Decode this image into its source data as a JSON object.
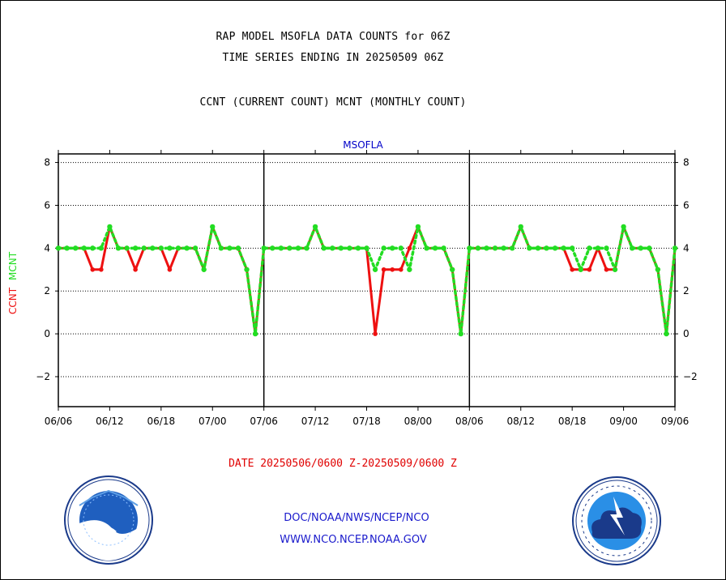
{
  "header": {
    "title_line1": "RAP MODEL MSOFLA DATA COUNTS for 06Z",
    "title_line2": "TIME SERIES ENDING IN 20250509 06Z",
    "subtitle": "CCNT (CURRENT COUNT) MCNT (MONTHLY COUNT)"
  },
  "footer": {
    "date_range": "DATE 20250506/0600 Z-20250509/0600 Z",
    "org": "DOC/NOAA/NWS/NCEP/NCO",
    "url": "WWW.NCO.NCEP.NOAA.GOV"
  },
  "logos": {
    "left": "noaa-logo",
    "right": "nws-logo"
  },
  "colors": {
    "ccnt": "#ee1111",
    "mcnt": "#22dd22",
    "plot_label": "#0000c8",
    "footer_text": "#1a1acc"
  },
  "chart_data": {
    "type": "line",
    "title": "MSOFLA",
    "ylabel_ccnt": "CCNT",
    "ylabel_mcnt": "MCNT",
    "ylim": [
      -3.4,
      8.4
    ],
    "yticks": [
      -2,
      0,
      2,
      4,
      6,
      8
    ],
    "grid": true,
    "xticks": [
      "06/06",
      "06/12",
      "06/18",
      "07/00",
      "07/06",
      "07/12",
      "07/18",
      "08/00",
      "08/06",
      "08/12",
      "08/18",
      "09/00",
      "09/06"
    ],
    "x_hours": [
      0,
      1,
      2,
      3,
      4,
      5,
      6,
      7,
      8,
      9,
      10,
      11,
      12,
      13,
      14,
      15,
      16,
      17,
      18,
      19,
      20,
      21,
      22,
      23,
      24,
      25,
      26,
      27,
      28,
      29,
      30,
      31,
      32,
      33,
      34,
      35,
      36,
      37,
      38,
      39,
      40,
      41,
      42,
      43,
      44,
      45,
      46,
      47,
      48,
      49,
      50,
      51,
      52,
      53,
      54,
      55,
      56,
      57,
      58,
      59,
      60,
      61,
      62,
      63,
      64,
      65,
      66,
      67,
      68,
      69,
      70,
      71,
      72
    ],
    "series": [
      {
        "name": "CCNT",
        "values": [
          4,
          4,
          4,
          4,
          3,
          3,
          5,
          4,
          4,
          3,
          4,
          4,
          4,
          3,
          4,
          4,
          4,
          3,
          5,
          4,
          4,
          4,
          3,
          0,
          4,
          4,
          4,
          4,
          4,
          4,
          5,
          4,
          4,
          4,
          4,
          4,
          4,
          0,
          3,
          3,
          3,
          4,
          5,
          4,
          4,
          4,
          3,
          0,
          4,
          4,
          4,
          4,
          4,
          4,
          5,
          4,
          4,
          4,
          4,
          4,
          3,
          3,
          3,
          4,
          3,
          3,
          5,
          4,
          4,
          4,
          3,
          0,
          4
        ]
      },
      {
        "name": "MCNT",
        "values": [
          4,
          4,
          4,
          4,
          4,
          4,
          5,
          4,
          4,
          4,
          4,
          4,
          4,
          4,
          4,
          4,
          4,
          3,
          5,
          4,
          4,
          4,
          3,
          0,
          4,
          4,
          4,
          4,
          4,
          4,
          5,
          4,
          4,
          4,
          4,
          4,
          4,
          3,
          4,
          4,
          4,
          3,
          5,
          4,
          4,
          4,
          3,
          0,
          4,
          4,
          4,
          4,
          4,
          4,
          5,
          4,
          4,
          4,
          4,
          4,
          4,
          3,
          4,
          4,
          4,
          3,
          5,
          4,
          4,
          4,
          3,
          0,
          4
        ]
      }
    ]
  }
}
